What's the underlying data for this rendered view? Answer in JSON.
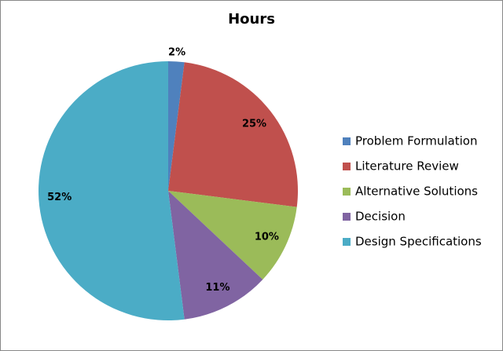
{
  "chart_data": {
    "type": "pie",
    "title": "Hours",
    "categories": [
      "Problem Formulation",
      "Literature Review",
      "Alternative Solutions",
      "Decision",
      "Design Specifications"
    ],
    "values": [
      2,
      25,
      10,
      11,
      52
    ],
    "value_labels": [
      "2%",
      "25%",
      "10%",
      "11%",
      "52%"
    ],
    "colors": [
      "#4f81bd",
      "#c0504d",
      "#9bbb59",
      "#8064a2",
      "#4bacc6"
    ],
    "legend": "right"
  }
}
